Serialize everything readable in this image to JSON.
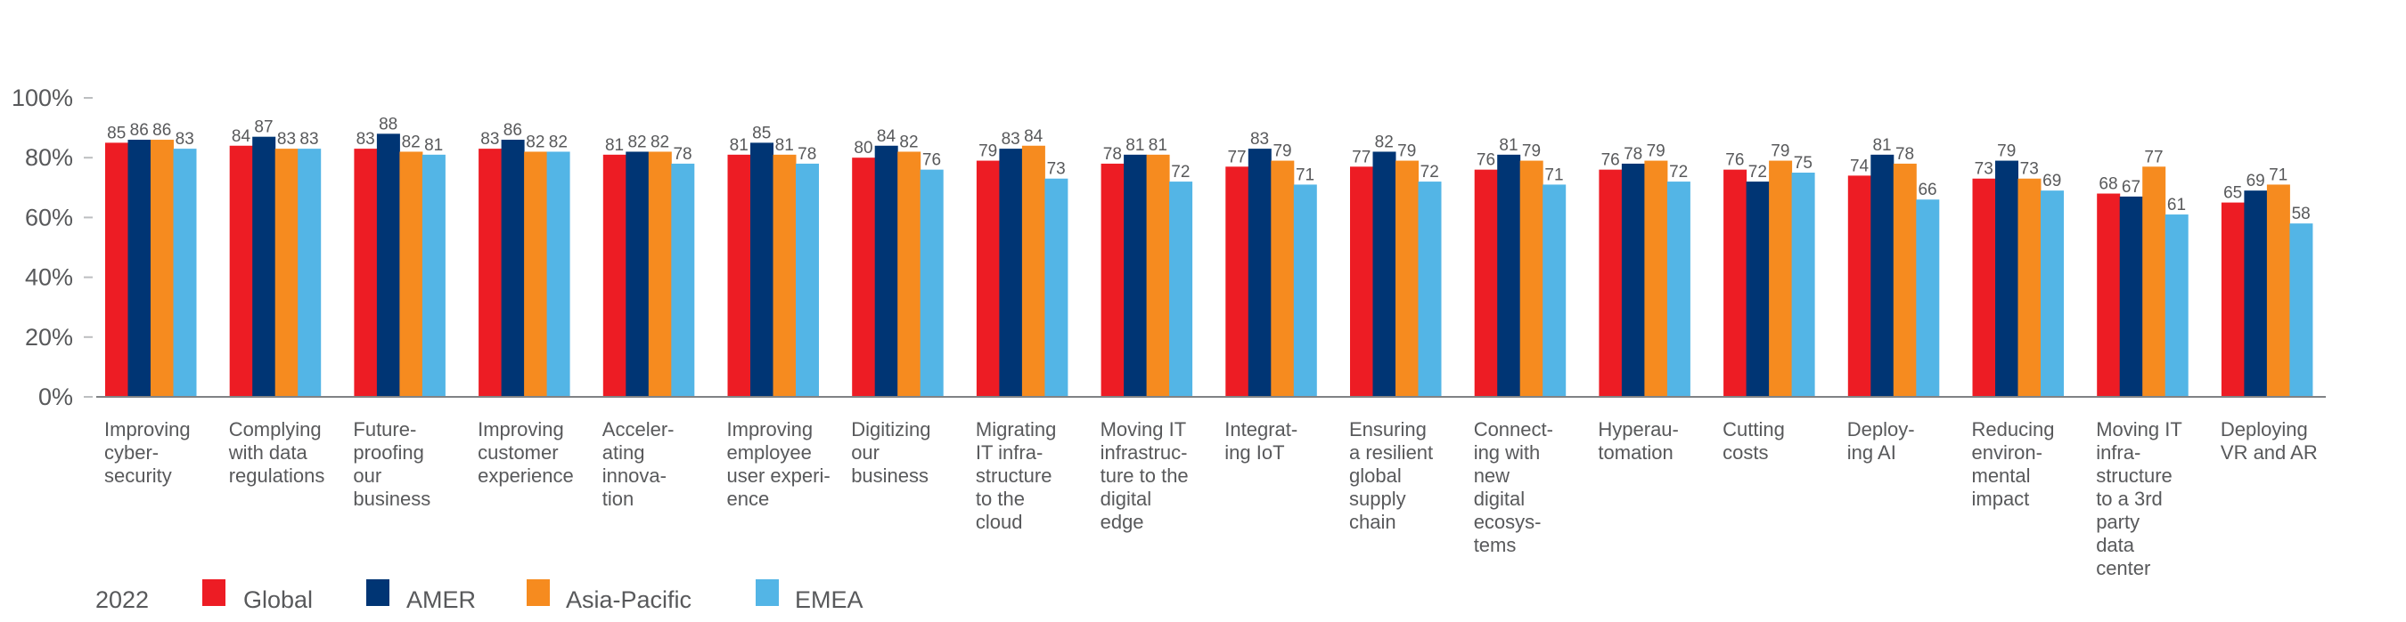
{
  "chart_data": {
    "type": "bar",
    "title": "",
    "xlabel": "",
    "ylabel": "",
    "ylim": [
      0,
      100
    ],
    "yticks": [
      "0%",
      "20%",
      "40%",
      "60%",
      "80%",
      "100%"
    ],
    "ytick_values": [
      0,
      20,
      40,
      60,
      80,
      100
    ],
    "grid": false,
    "legend": {
      "placement": "bottom-left",
      "title": "2022",
      "entries": [
        "Global",
        "AMER",
        "Asia-Pacific",
        "EMEA"
      ]
    },
    "colors": {
      "Global": "#ED1C24",
      "AMER": "#003574",
      "Asia-Pacific": "#F68B1F",
      "EMEA": "#53B5E6"
    },
    "categories": [
      [
        "Improving",
        "cyber-",
        "security"
      ],
      [
        "Complying",
        "with data",
        "regulations"
      ],
      [
        "Future-",
        "proofing",
        "our",
        "business"
      ],
      [
        "Improving",
        "customer",
        "experience"
      ],
      [
        "Acceler-",
        "ating",
        "innova-",
        "tion"
      ],
      [
        "Improving",
        "employee",
        "user experi-",
        "ence"
      ],
      [
        "Digitizing",
        "our",
        "business"
      ],
      [
        "Migrating",
        "IT infra-",
        "structure",
        "to the",
        "cloud"
      ],
      [
        "Moving IT",
        "infrastruc-",
        "ture to the",
        "digital",
        "edge"
      ],
      [
        "Integrat-",
        "ing IoT"
      ],
      [
        "Ensuring",
        "a resilient",
        "global",
        "supply",
        "chain"
      ],
      [
        "Connect-",
        "ing with",
        "new",
        "digital",
        "ecosys-",
        "tems"
      ],
      [
        "Hyperau-",
        "tomation"
      ],
      [
        "Cutting",
        "costs"
      ],
      [
        "Deploy-",
        "ing AI"
      ],
      [
        "Reducing",
        "environ-",
        "mental",
        "impact"
      ],
      [
        "Moving IT",
        "infra-",
        "structure",
        "to a 3rd",
        "party",
        "data",
        "center"
      ],
      [
        "Deploying",
        "VR and AR"
      ]
    ],
    "series": [
      {
        "name": "Global",
        "values": [
          85,
          84,
          83,
          83,
          81,
          81,
          80,
          79,
          78,
          77,
          77,
          76,
          76,
          76,
          74,
          73,
          68,
          65
        ]
      },
      {
        "name": "AMER",
        "values": [
          86,
          87,
          88,
          86,
          82,
          85,
          84,
          83,
          81,
          83,
          82,
          81,
          78,
          72,
          81,
          79,
          67,
          69
        ]
      },
      {
        "name": "Asia-Pacific",
        "values": [
          86,
          83,
          82,
          82,
          82,
          81,
          82,
          84,
          81,
          79,
          79,
          79,
          79,
          79,
          78,
          73,
          77,
          71
        ]
      },
      {
        "name": "EMEA",
        "values": [
          83,
          83,
          81,
          82,
          78,
          78,
          76,
          73,
          72,
          71,
          72,
          71,
          72,
          75,
          66,
          69,
          61,
          58
        ]
      }
    ],
    "value_labels_shown": true
  }
}
